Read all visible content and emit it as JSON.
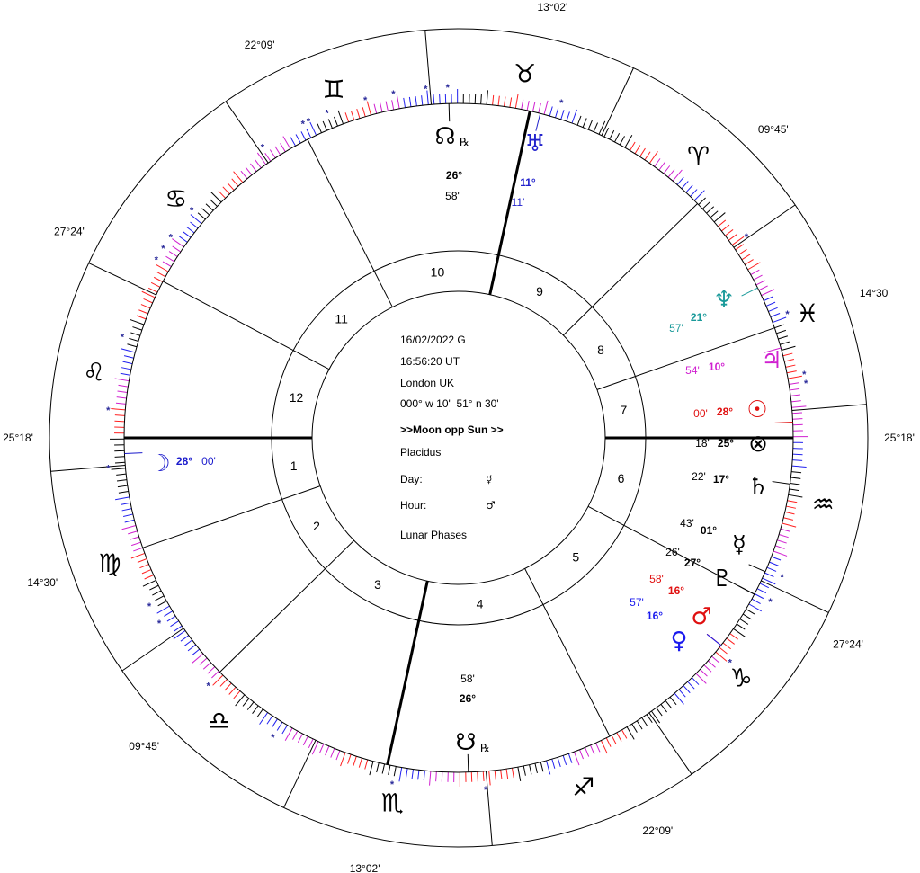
{
  "center_info": {
    "date": "16/02/2022 G",
    "time": "16:56:20 UT",
    "location": "London UK",
    "coordinates": "000° w 10'  51° n 30'",
    "aspect": ">>Moon opp Sun >>",
    "house_system": "Placidus",
    "day_label": "Day:",
    "day_ruler": "☿",
    "hour_label": "Hour:",
    "hour_ruler": "♂",
    "lunar_phases": "Lunar Phases"
  },
  "cusps": [
    {
      "house": 1,
      "label": "25°18'"
    },
    {
      "house": 2,
      "label": "14°30'"
    },
    {
      "house": 3,
      "label": "09°45'"
    },
    {
      "house": 4,
      "label": "13°02'"
    },
    {
      "house": 5,
      "label": "22°09'"
    },
    {
      "house": 6,
      "label": "27°24'"
    },
    {
      "house": 7,
      "label": "25°18'"
    },
    {
      "house": 8,
      "label": "14°30'"
    },
    {
      "house": 9,
      "label": "09°45'"
    },
    {
      "house": 10,
      "label": "13°02'"
    },
    {
      "house": 11,
      "label": "22°09'"
    },
    {
      "house": 12,
      "label": "27°24'"
    }
  ],
  "house_numbers": [
    "1",
    "2",
    "3",
    "4",
    "5",
    "6",
    "7",
    "8",
    "9",
    "10",
    "11",
    "12"
  ],
  "signs": [
    {
      "name": "aries",
      "glyph": "♈"
    },
    {
      "name": "taurus",
      "glyph": "♉"
    },
    {
      "name": "gemini",
      "glyph": "♊"
    },
    {
      "name": "cancer",
      "glyph": "♋"
    },
    {
      "name": "leo",
      "glyph": "♌"
    },
    {
      "name": "virgo",
      "glyph": "♍"
    },
    {
      "name": "libra",
      "glyph": "♎"
    },
    {
      "name": "scorpio",
      "glyph": "♏"
    },
    {
      "name": "sagittarius",
      "glyph": "♐"
    },
    {
      "name": "capricorn",
      "glyph": "♑"
    },
    {
      "name": "aquarius",
      "glyph": "♒"
    },
    {
      "name": "pisces",
      "glyph": "♓"
    }
  ],
  "planets": [
    {
      "name": "north-node",
      "glyph": "☊",
      "retro": "℞",
      "deg": "26°",
      "min": "58'",
      "color": "#000000"
    },
    {
      "name": "uranus",
      "glyph": "♅",
      "retro": "",
      "deg": "11°",
      "min": "11'",
      "color": "#2222cc"
    },
    {
      "name": "neptune",
      "glyph": "♆",
      "retro": "",
      "deg": "21°",
      "min": "57'",
      "color": "#1a9a9a"
    },
    {
      "name": "jupiter",
      "glyph": "♃",
      "retro": "",
      "deg": "10°",
      "min": "54'",
      "color": "#d020d0"
    },
    {
      "name": "sun",
      "glyph": "☉",
      "retro": "",
      "deg": "28°",
      "min": "00'",
      "color": "#e01010"
    },
    {
      "name": "part-of-fortune",
      "glyph": "⊗",
      "retro": "",
      "deg": "25°",
      "min": "18'",
      "color": "#000000"
    },
    {
      "name": "saturn",
      "glyph": "♄",
      "retro": "",
      "deg": "17°",
      "min": "22'",
      "color": "#000000"
    },
    {
      "name": "mercury",
      "glyph": "☿",
      "retro": "",
      "deg": "01°",
      "min": "43'",
      "color": "#000000"
    },
    {
      "name": "pluto",
      "glyph": "♇",
      "retro": "",
      "deg": "27°",
      "min": "26'",
      "color": "#000000"
    },
    {
      "name": "mars",
      "glyph": "♂",
      "retro": "",
      "deg": "16°",
      "min": "58'",
      "color": "#e01010"
    },
    {
      "name": "venus",
      "glyph": "♀",
      "retro": "",
      "deg": "16°",
      "min": "57'",
      "color": "#1a1aee"
    },
    {
      "name": "moon",
      "glyph": "☽",
      "retro": "",
      "deg": "28°",
      "min": "00'",
      "color": "#1a1acc"
    },
    {
      "name": "south-node",
      "glyph": "☋",
      "retro": "℞",
      "deg": "26°",
      "min": "58'",
      "color": "#000000"
    }
  ],
  "tick_colors": [
    "#ff2020",
    "#d020d0",
    "#2020ee",
    "#000000"
  ],
  "star_symbol": "*"
}
